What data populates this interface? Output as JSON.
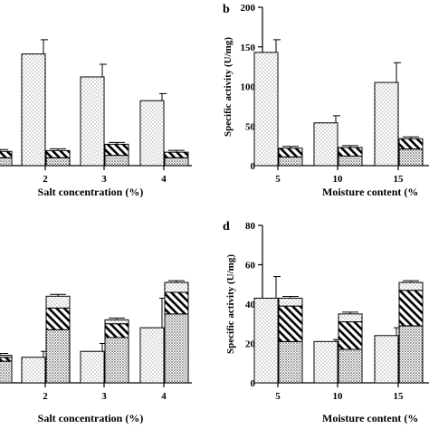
{
  "colors": {
    "ink": "#000000",
    "background": "#ffffff"
  },
  "panels": {
    "a": {
      "xlabel": "Salt concentration (%)"
    },
    "b": {
      "letter": "b",
      "ylabel": "Specific activity (U/mg)",
      "xlabel": "Moisture content (%"
    },
    "c": {
      "xlabel": "Salt concentration (%)"
    },
    "d": {
      "letter": "d",
      "ylabel": "Specific activity (U/mg)",
      "xlabel": "Moisture content (%"
    }
  },
  "chart_data": [
    {
      "panel": "a",
      "type": "bar",
      "xlabel": "Salt concentration (%)",
      "ylim": [
        0,
        200
      ],
      "categories": [
        "2",
        "3",
        "4"
      ],
      "partial_left_group": {
        "stack": [
          10,
          8
        ]
      },
      "groups": [
        {
          "category": "2",
          "single": {
            "value": 141,
            "error": 18
          },
          "stack": [
            10,
            9
          ]
        },
        {
          "category": "3",
          "single": {
            "value": 112,
            "error": 16
          },
          "stack": [
            13,
            14
          ]
        },
        {
          "category": "4",
          "single": {
            "value": 82,
            "error": 9
          },
          "stack": [
            10,
            7
          ]
        }
      ]
    },
    {
      "panel": "b",
      "type": "bar",
      "ylabel": "Specific activity (U/mg)",
      "xlabel": "Moisture content (%",
      "ylim": [
        0,
        200
      ],
      "yticks": [
        0,
        50,
        100,
        150,
        200
      ],
      "categories": [
        "5",
        "10",
        "15"
      ],
      "groups": [
        {
          "category": "5",
          "single": {
            "value": 143,
            "error": 16
          },
          "stack": [
            11,
            11
          ]
        },
        {
          "category": "10",
          "single": {
            "value": 54,
            "error": 9
          },
          "stack": [
            12,
            11
          ]
        },
        {
          "category": "15",
          "single": {
            "value": 105,
            "error": 25
          },
          "stack": [
            21,
            13
          ]
        }
      ]
    },
    {
      "panel": "c",
      "type": "bar",
      "xlabel": "Salt concentration (%)",
      "ylim": [
        0,
        80
      ],
      "categories": [
        "2",
        "3",
        "4"
      ],
      "partial_left_group": {
        "stack": [
          11,
          2,
          1
        ]
      },
      "groups": [
        {
          "category": "2",
          "single": {
            "value": 13,
            "error": 3
          },
          "stack": [
            27,
            11,
            6
          ]
        },
        {
          "category": "3",
          "single": {
            "value": 16,
            "error": 4
          },
          "stack": [
            23,
            7,
            2
          ]
        },
        {
          "category": "4",
          "single": {
            "value": 28,
            "error": 15
          },
          "stack": [
            35,
            11,
            5
          ]
        }
      ]
    },
    {
      "panel": "d",
      "type": "bar",
      "ylabel": "Specific activity (U/mg)",
      "xlabel": "Moisture content (%",
      "ylim": [
        0,
        80
      ],
      "yticks": [
        0,
        20,
        40,
        60,
        80
      ],
      "categories": [
        "5",
        "10",
        "15"
      ],
      "groups": [
        {
          "category": "5",
          "single": {
            "value": 43,
            "error": 11
          },
          "stack": [
            21,
            18,
            4
          ]
        },
        {
          "category": "10",
          "single": {
            "value": 21,
            "error": 1
          },
          "stack": [
            17,
            14,
            4
          ]
        },
        {
          "category": "15",
          "single": {
            "value": 24,
            "error": 4
          },
          "stack": [
            29,
            18,
            4
          ]
        }
      ]
    }
  ]
}
